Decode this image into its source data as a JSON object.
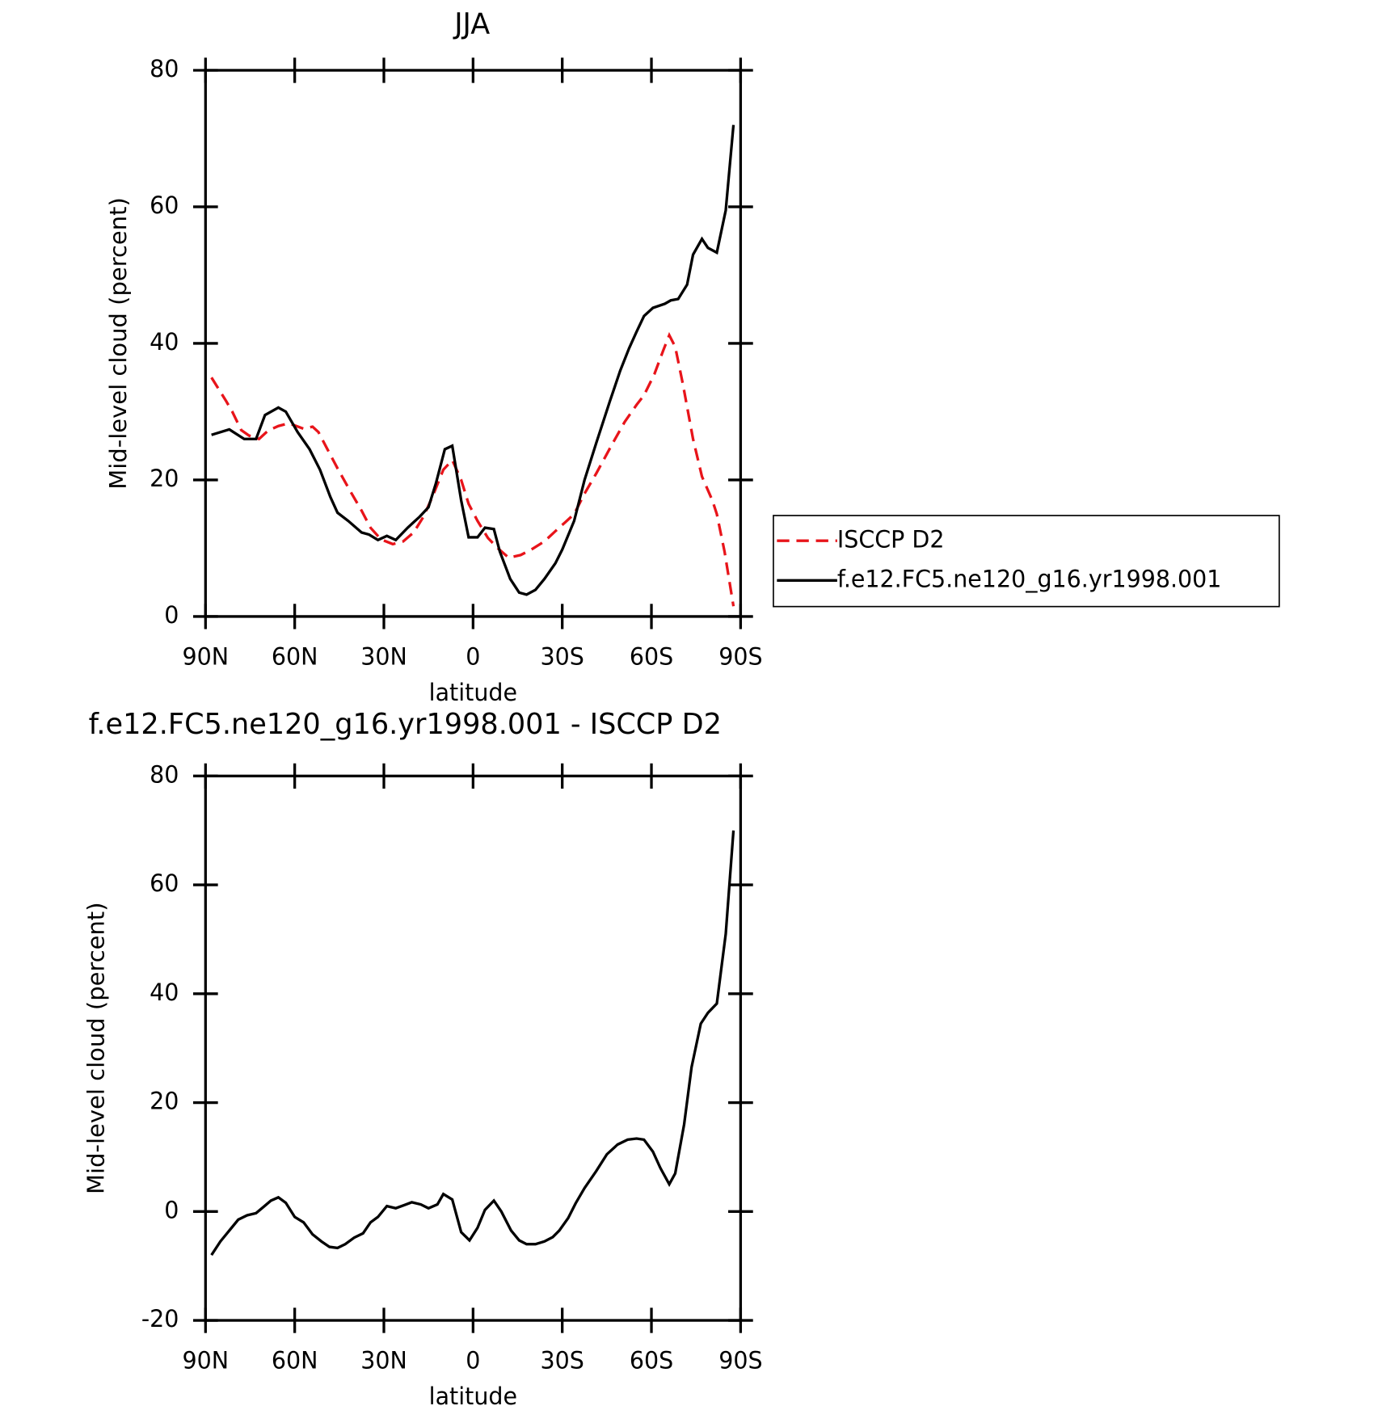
{
  "chart_data": [
    {
      "type": "line",
      "title": "JJA",
      "xlabel": "latitude",
      "ylabel": "Mid-level cloud (percent)",
      "xlim": [
        90,
        -90
      ],
      "xticks": [
        {
          "value": 90,
          "label": "90N"
        },
        {
          "value": 60,
          "label": "60N"
        },
        {
          "value": 30,
          "label": "30N"
        },
        0,
        {
          "value": -30,
          "label": "30S"
        },
        {
          "value": -60,
          "label": "60S"
        },
        {
          "value": -90,
          "label": "90S"
        }
      ],
      "ylim": [
        0,
        80
      ],
      "yticks": [
        0,
        20,
        40,
        60,
        80
      ],
      "legend": "right",
      "series": [
        {
          "name": "ISCCP D2",
          "color": "#e8141a",
          "dashed": true,
          "x": [
            88,
            83,
            81,
            78,
            75.4,
            72,
            69,
            65.5,
            62,
            57,
            54,
            52,
            49,
            45.6,
            41.5,
            37.5,
            34.5,
            31,
            27,
            23.5,
            20,
            16.7,
            13.7,
            10,
            7,
            4,
            1.5,
            -1.5,
            -5,
            -8.3,
            -12,
            -16,
            -19.6,
            -24,
            -27.7,
            -31,
            -34,
            -37.5,
            -41.5,
            -46.5,
            -51,
            -55,
            -57.5,
            -61,
            -64,
            -66,
            -68,
            -70.6,
            -74,
            -77,
            -80.5,
            -82,
            -84.6,
            -87.6
          ],
          "values": [
            35,
            31.5,
            30,
            27.3,
            26.5,
            26,
            27.2,
            27.9,
            28.3,
            27.5,
            27.8,
            27,
            24.5,
            21.7,
            18.5,
            15.5,
            13,
            11.3,
            10.6,
            11,
            12.3,
            14.6,
            17.5,
            21.5,
            22.9,
            20,
            16.5,
            14,
            11.5,
            10,
            8.6,
            9,
            9.8,
            11,
            12.5,
            13.8,
            15,
            18,
            21,
            25,
            28.5,
            31,
            32.4,
            35.5,
            39,
            41.2,
            39.5,
            34,
            26,
            20.5,
            17,
            15,
            9.5,
            1.5
          ]
        },
        {
          "name": "f.e12.FC5.ne120_g16.yr1998.001",
          "color": "#000000",
          "dashed": false,
          "x": [
            88,
            82,
            77,
            73,
            70,
            65.5,
            63,
            59,
            55,
            51.5,
            48,
            45.6,
            42,
            37.5,
            35,
            32,
            29,
            26,
            22,
            18,
            15,
            12.5,
            9.5,
            7,
            4,
            1.5,
            -1.5,
            -4,
            -7,
            -9,
            -12.5,
            -15.5,
            -18,
            -21,
            -24,
            -27.7,
            -30,
            -34,
            -37.5,
            -41.5,
            -46,
            -49.5,
            -52.5,
            -55,
            -57.5,
            -60.5,
            -64.5,
            -66.5,
            -69,
            -72,
            -74,
            -77,
            -79,
            -82,
            -85,
            -87.6
          ],
          "values": [
            26.6,
            27.4,
            26,
            26,
            29.5,
            30.6,
            30,
            27,
            24.5,
            21.5,
            17.5,
            15.2,
            14,
            12.3,
            12,
            11.2,
            11.8,
            11.2,
            13,
            14.6,
            16,
            19.5,
            24.5,
            25,
            17,
            11.6,
            11.6,
            13,
            12.8,
            9.5,
            5.5,
            3.5,
            3.2,
            3.9,
            5.5,
            7.8,
            9.8,
            14,
            20,
            25.5,
            31.5,
            36,
            39.3,
            41.7,
            44,
            45.2,
            45.8,
            46.3,
            46.5,
            48.6,
            53,
            55.3,
            54,
            53.3,
            59.5,
            72
          ]
        }
      ]
    },
    {
      "type": "line",
      "title": "f.e12.FC5.ne120_g16.yr1998.001 - ISCCP D2",
      "xlabel": "latitude",
      "ylabel": "Mid-level cloud (percent)",
      "xlim": [
        90,
        -90
      ],
      "xticks": [
        {
          "value": 90,
          "label": "90N"
        },
        {
          "value": 60,
          "label": "60N"
        },
        {
          "value": 30,
          "label": "30N"
        },
        0,
        {
          "value": -30,
          "label": "30S"
        },
        {
          "value": -60,
          "label": "60S"
        },
        {
          "value": -90,
          "label": "90S"
        }
      ],
      "ylim": [
        -20,
        80
      ],
      "yticks": [
        -20,
        0,
        20,
        40,
        60,
        80
      ],
      "series": [
        {
          "color": "#000000",
          "dashed": false,
          "x": [
            88,
            85,
            82,
            79,
            76,
            73,
            70.6,
            68,
            65.5,
            63,
            60,
            57,
            54,
            51,
            48.3,
            45.6,
            43,
            40,
            37,
            34.5,
            32,
            29,
            26,
            23,
            20.6,
            17.6,
            15,
            12,
            10,
            7,
            4,
            1.2,
            -1.5,
            -4,
            -7,
            -9.5,
            -12.8,
            -15.5,
            -18,
            -21,
            -24,
            -26.8,
            -29,
            -32,
            -34.5,
            -37.5,
            -41.4,
            -45,
            -48.6,
            -52,
            -55,
            -57.5,
            -60.5,
            -63,
            -66,
            -68,
            -71,
            -73.5,
            -76.6,
            -79,
            -82,
            -85,
            -87.6
          ],
          "values": [
            -8,
            -5.5,
            -3.5,
            -1.5,
            -0.7,
            -0.3,
            0.8,
            2,
            2.6,
            1.6,
            -1,
            -2,
            -4.2,
            -5.5,
            -6.5,
            -6.7,
            -6,
            -4.8,
            -4,
            -2,
            -1,
            1,
            0.6,
            1.2,
            1.7,
            1.3,
            0.6,
            1.3,
            3.2,
            2.2,
            -3.8,
            -5.3,
            -3,
            0.3,
            2,
            0,
            -3.5,
            -5.3,
            -6,
            -6,
            -5.5,
            -4.7,
            -3.5,
            -1.2,
            1.5,
            4.3,
            7.4,
            10.5,
            12.3,
            13.2,
            13.4,
            13.2,
            11,
            8,
            5,
            7,
            16,
            26.5,
            34.5,
            36.5,
            38.2,
            51,
            70
          ]
        }
      ]
    }
  ]
}
